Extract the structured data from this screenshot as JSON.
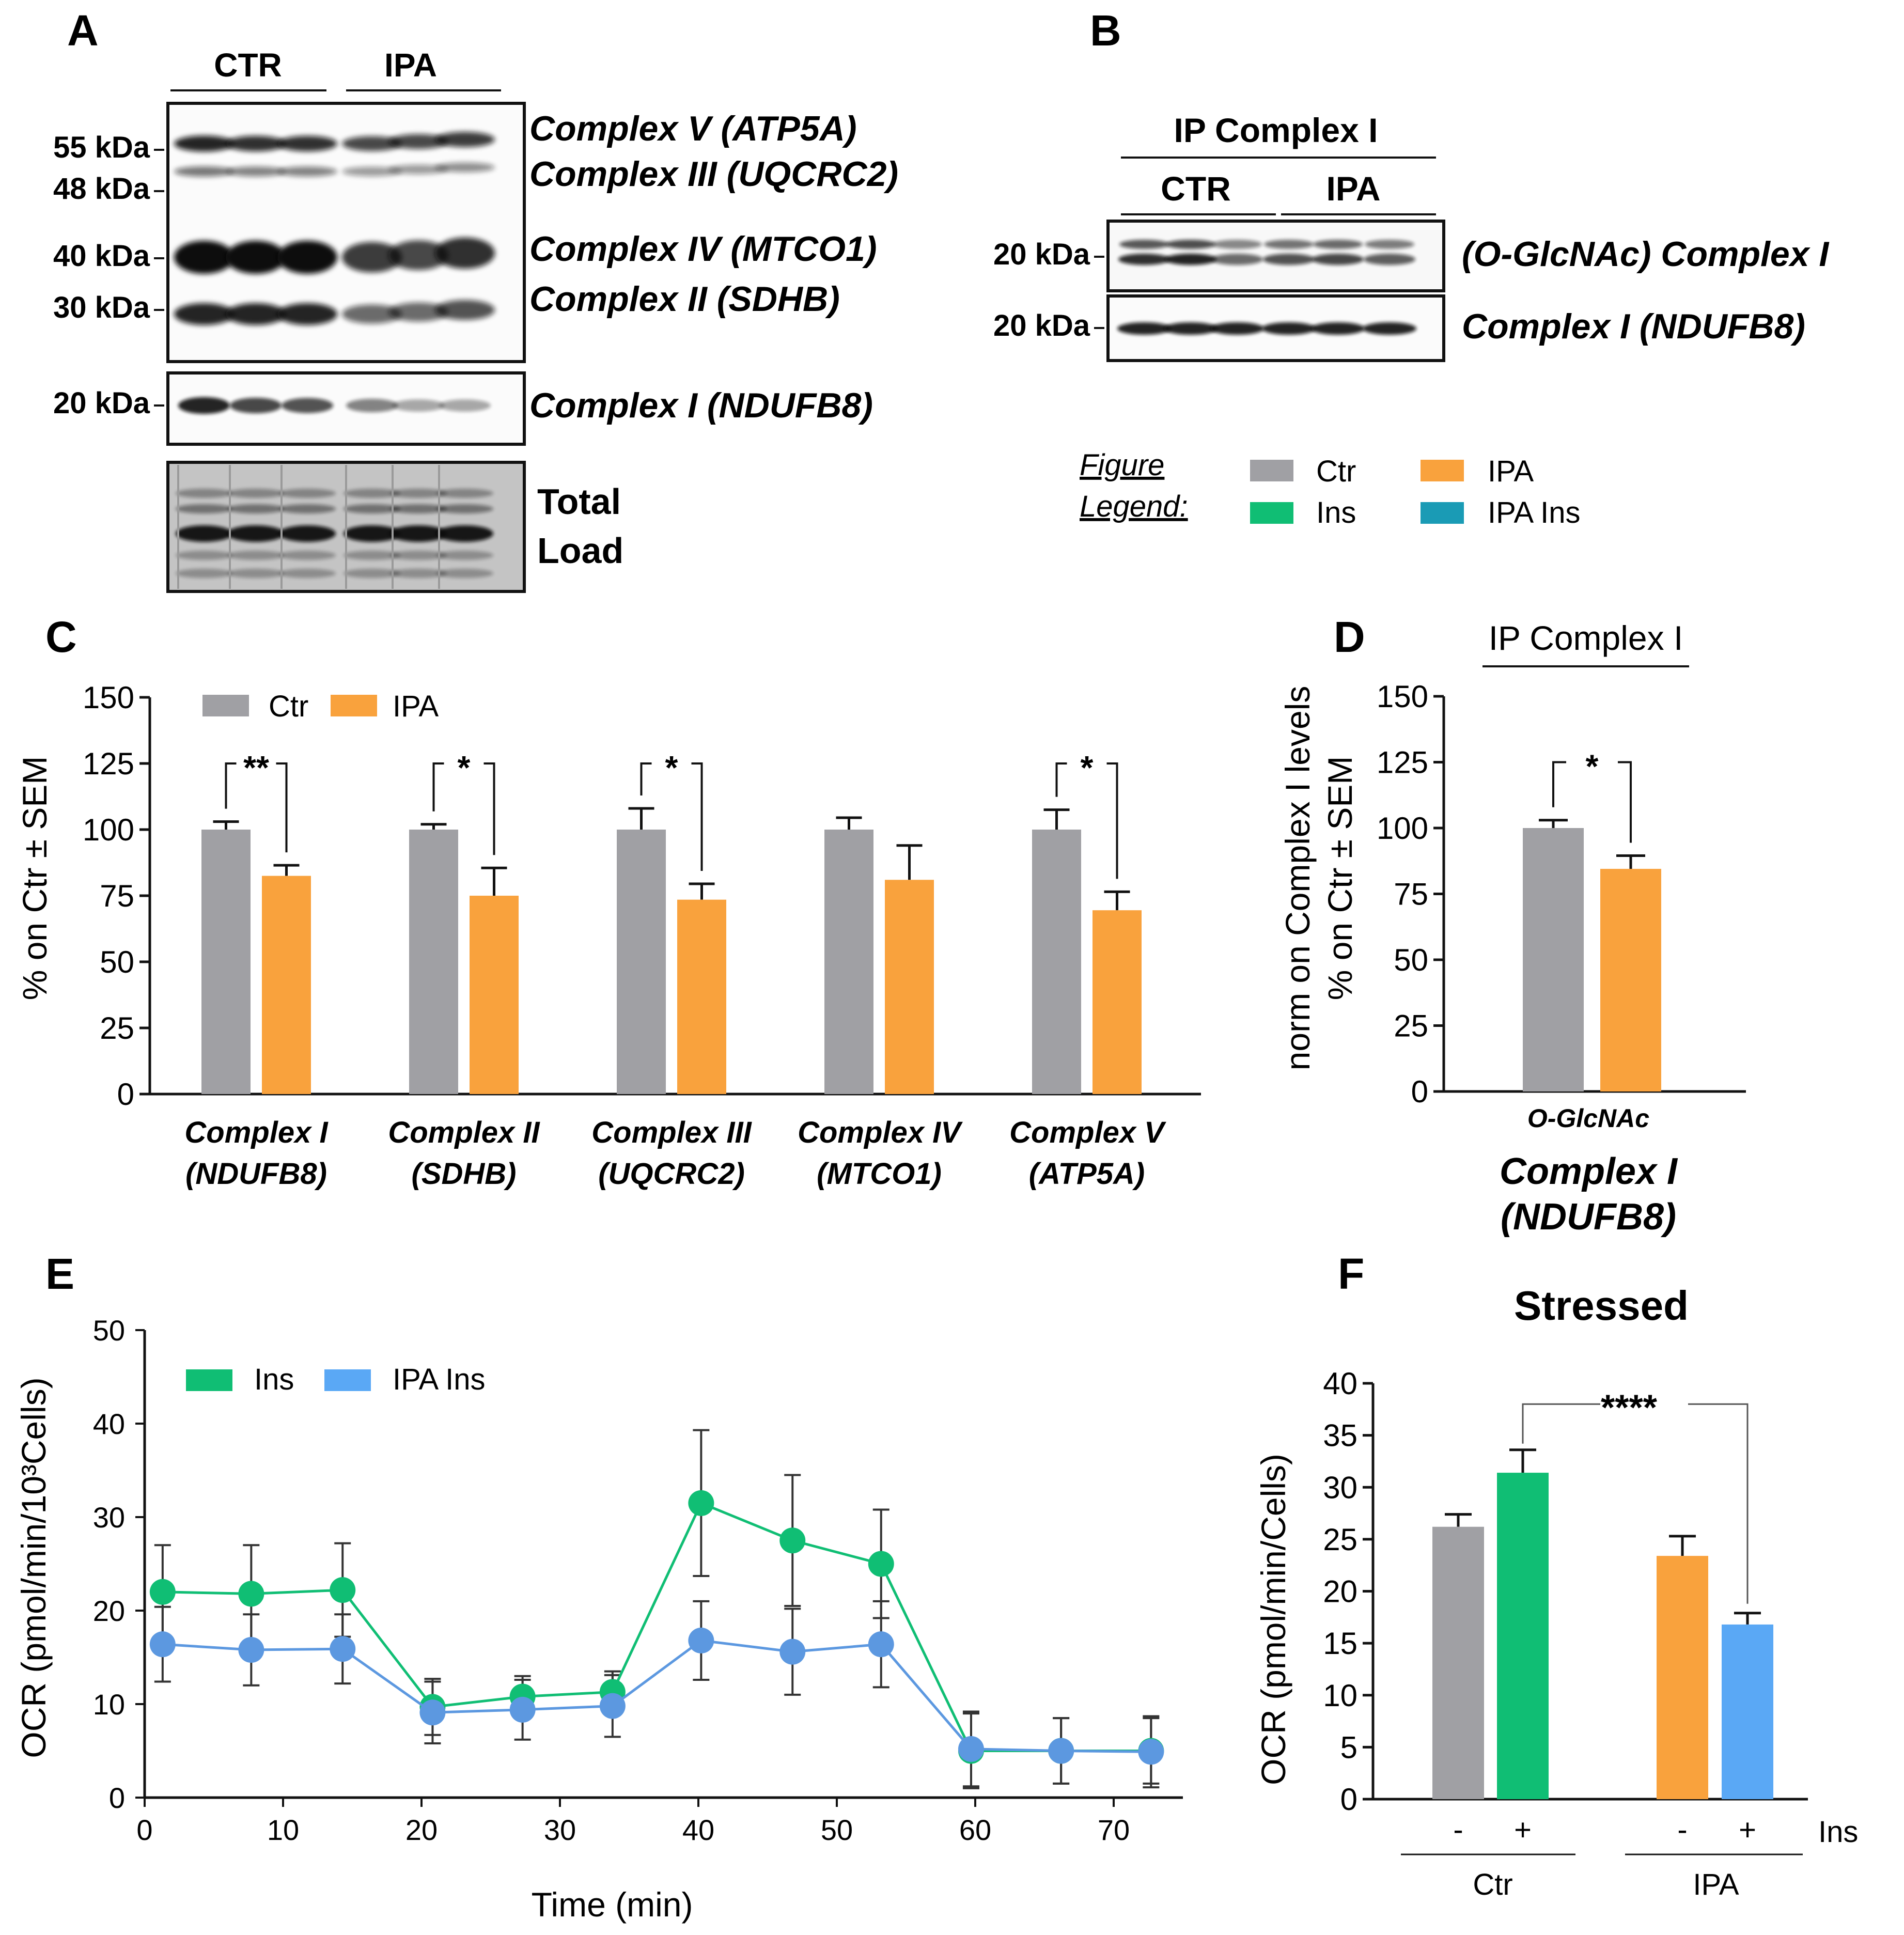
{
  "colors": {
    "ctr": "#a0a0a4",
    "ipa": "#f9a23d",
    "ins": "#10be74",
    "ipa_ins": "#1a9bb5",
    "ipa_ins_line": "#5c98e0",
    "ipa_ins_bar": "#5aa8f5",
    "axis": "#111111",
    "blot_dark": "#111111"
  },
  "panel_a": {
    "letter": "A",
    "groups": [
      "CTR",
      "IPA"
    ],
    "mw_labels": [
      "55 kDa",
      "48 kDa",
      "40 kDa",
      "30 kDa",
      "20 kDa"
    ],
    "band_labels": [
      "Complex V (ATP5A)",
      "Complex III (UQCRC2)",
      "Complex IV (MTCO1)",
      "Complex II (SDHB)",
      "Complex I (NDUFB8)"
    ],
    "band_intensity": {
      "complex_v": [
        0.9,
        0.85,
        0.85,
        0.75,
        0.75,
        0.8
      ],
      "complex_iii": [
        0.55,
        0.5,
        0.5,
        0.4,
        0.4,
        0.45
      ],
      "complex_iv": [
        1.0,
        1.0,
        1.0,
        0.8,
        0.75,
        0.85
      ],
      "complex_ii": [
        0.9,
        0.9,
        0.9,
        0.6,
        0.6,
        0.7
      ],
      "complex_i": [
        0.9,
        0.75,
        0.7,
        0.5,
        0.35,
        0.35
      ]
    },
    "total_load": [
      "Total",
      "Load"
    ]
  },
  "panel_b": {
    "letter": "B",
    "ip_label": "IP Complex I",
    "groups": [
      "CTR",
      "IPA"
    ],
    "rows": [
      {
        "mw": "20 kDa",
        "label": "(O-GlcNAc) Complex I"
      },
      {
        "mw": "20 kDa",
        "label": "Complex I (NDUFB8)"
      }
    ],
    "band_intensity": {
      "oglcnac": [
        0.85,
        0.9,
        0.6,
        0.7,
        0.75,
        0.65
      ],
      "ndufb8": [
        0.9,
        0.9,
        0.9,
        0.9,
        0.9,
        0.9
      ]
    }
  },
  "legend": {
    "title_1": "Figure",
    "title_2": "Legend:",
    "items": [
      "Ctr",
      "IPA",
      "Ins",
      "IPA Ins"
    ]
  },
  "chart_data": [
    {
      "panel": "C",
      "type": "bar",
      "ylabel": "% on Ctr ± SEM",
      "ylim": [
        0,
        150
      ],
      "yticks": [
        0,
        25,
        50,
        75,
        100,
        125,
        150
      ],
      "legend": [
        "Ctr",
        "IPA"
      ],
      "categories": [
        {
          "line1": "Complex I",
          "line2": "(NDUFB8)"
        },
        {
          "line1": "Complex II",
          "line2": "(SDHB)"
        },
        {
          "line1": "Complex III",
          "line2": "(UQCRC2)"
        },
        {
          "line1": "Complex IV",
          "line2": "(MTCO1)"
        },
        {
          "line1": "Complex V",
          "line2": "(ATP5A)"
        }
      ],
      "series": [
        {
          "name": "Ctr",
          "values": [
            100,
            100,
            100,
            100,
            100
          ],
          "sem": [
            3,
            2,
            8,
            4.5,
            7.5
          ]
        },
        {
          "name": "IPA",
          "values": [
            82.5,
            75,
            73.5,
            81,
            69.5
          ],
          "sem": [
            4,
            10.5,
            6,
            13,
            7
          ]
        }
      ],
      "significance": [
        "**",
        "*",
        "*",
        "",
        "*"
      ]
    },
    {
      "panel": "D",
      "type": "bar",
      "title": "IP Complex I",
      "ylabel_1": "norm on Complex I levels",
      "ylabel_2": "% on Ctr ± SEM",
      "ylim": [
        0,
        150
      ],
      "yticks": [
        0,
        25,
        50,
        75,
        100,
        125,
        150
      ],
      "category_line1": "O-GlcNAc",
      "category_line2": "Complex I",
      "category_line3": "(NDUFB8)",
      "series": [
        {
          "name": "Ctr",
          "values": [
            100
          ],
          "sem": [
            3
          ]
        },
        {
          "name": "IPA",
          "values": [
            84.5
          ],
          "sem": [
            5
          ]
        }
      ],
      "significance": "*"
    },
    {
      "panel": "E",
      "type": "line",
      "xlabel": "Time (min)",
      "ylabel": "OCR (pmol/min/10³Cells)",
      "xlim": [
        0,
        75
      ],
      "ylim": [
        0,
        50
      ],
      "xticks": [
        0,
        10,
        20,
        30,
        40,
        50,
        60,
        70
      ],
      "yticks": [
        0,
        10,
        20,
        30,
        40,
        50
      ],
      "x": [
        1.3,
        7.7,
        14.3,
        20.8,
        27.3,
        33.8,
        40.2,
        46.8,
        53.2,
        59.7,
        66.2,
        72.7
      ],
      "series": [
        {
          "name": "Ins",
          "values": [
            22,
            21.8,
            22.2,
            9.7,
            10.8,
            11.3,
            31.5,
            27.5,
            25,
            5,
            5,
            5
          ],
          "err": [
            5,
            5.2,
            5,
            3,
            2.2,
            2.2,
            7.8,
            7,
            5.8,
            4,
            3.5,
            3.5
          ]
        },
        {
          "name": "IPA Ins",
          "values": [
            16.4,
            15.8,
            15.9,
            9.1,
            9.4,
            9.8,
            16.8,
            15.6,
            16.4,
            5.2,
            5,
            4.9
          ],
          "err": [
            4,
            3.8,
            3.7,
            3.3,
            3.2,
            3.3,
            4.2,
            4.6,
            4.6,
            4,
            3.5,
            3.8
          ]
        }
      ]
    },
    {
      "panel": "F",
      "type": "bar",
      "title": "Stressed",
      "ylabel": "OCR (pmol/min/Cells)",
      "ylim": [
        0,
        40
      ],
      "yticks": [
        0,
        5,
        10,
        15,
        20,
        25,
        30,
        35,
        40
      ],
      "bars": [
        {
          "group": "Ctr",
          "ins": "-",
          "value": 26.2,
          "sem": 1.2,
          "color_key": "ctr"
        },
        {
          "group": "Ctr",
          "ins": "+",
          "value": 31.4,
          "sem": 2.2,
          "color_key": "ins"
        },
        {
          "group": "IPA",
          "ins": "-",
          "value": 23.4,
          "sem": 1.9,
          "color_key": "ipa"
        },
        {
          "group": "IPA",
          "ins": "+",
          "value": 16.8,
          "sem": 1.1,
          "color_key": "ipa_ins_bar"
        }
      ],
      "ins_label": "Ins",
      "group_labels": [
        "Ctr",
        "IPA"
      ],
      "significance": "****"
    }
  ]
}
